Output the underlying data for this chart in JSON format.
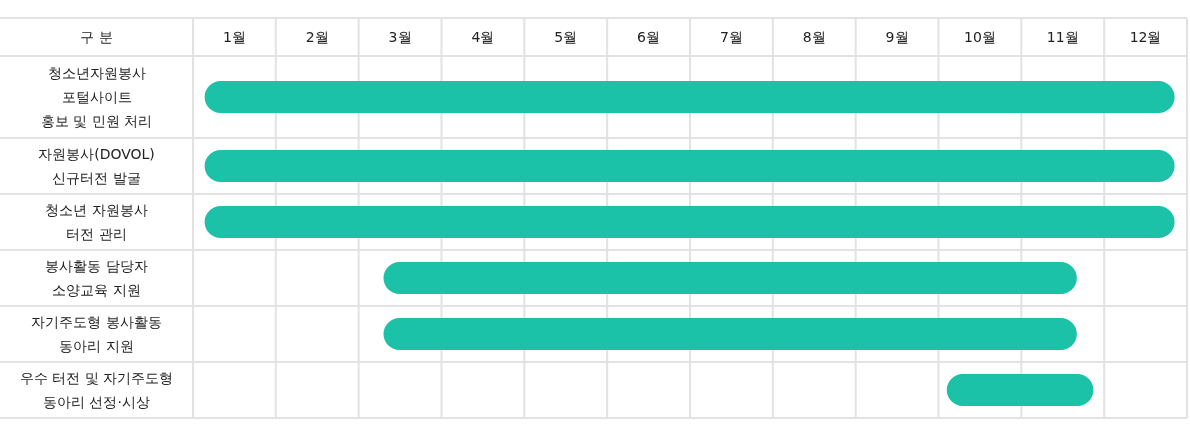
{
  "chart_data": {
    "type": "bar",
    "orientation": "horizontal",
    "ylabel": "구 분",
    "categories": [
      "청소년자원봉사\n포털사이트\n홍보 및 민원 처리",
      "자원봉사(DOVOL)\n신규터전 발굴",
      "청소년 자원봉사\n터전 관리",
      "봉사활동 담당자\n소양교육 지원",
      "자기주도형 봉사활동\n동아리 지원",
      "우수 터전 및 자기주도형\n동아리 선정·시상"
    ],
    "base": [
      0.14,
      0.14,
      0.14,
      2.3,
      2.3,
      9.1
    ],
    "values": [
      11.71,
      11.71,
      11.71,
      8.37,
      8.37,
      1.77
    ],
    "color": "#1bc2a8",
    "xlim": [
      0,
      12
    ],
    "xticks": [
      {
        "value": 0,
        "label": null
      },
      {
        "value": 0.5,
        "label": "1월"
      },
      {
        "value": 1,
        "label": null
      },
      {
        "value": 1.5,
        "label": "2월"
      },
      {
        "value": 2,
        "label": null
      },
      {
        "value": 2.5,
        "label": "3월"
      },
      {
        "value": 3,
        "label": null
      },
      {
        "value": 3.5,
        "label": "4월"
      },
      {
        "value": 4,
        "label": null
      },
      {
        "value": 4.5,
        "label": "5월"
      },
      {
        "value": 5,
        "label": null
      },
      {
        "value": 5.5,
        "label": "6월"
      },
      {
        "value": 6,
        "label": null
      },
      {
        "value": 6.5,
        "label": "7월"
      },
      {
        "value": 7,
        "label": null
      },
      {
        "value": 7.5,
        "label": "8월"
      },
      {
        "value": 8,
        "label": null
      },
      {
        "value": 8.5,
        "label": "9월"
      },
      {
        "value": 9,
        "label": null
      },
      {
        "value": 9.5,
        "label": "10월"
      },
      {
        "value": 10,
        "label": null
      },
      {
        "value": 10.5,
        "label": "11월"
      },
      {
        "value": 11,
        "label": null
      },
      {
        "value": 11.5,
        "label": "12월"
      },
      {
        "value": 12,
        "label": null
      }
    ],
    "grid": true
  }
}
